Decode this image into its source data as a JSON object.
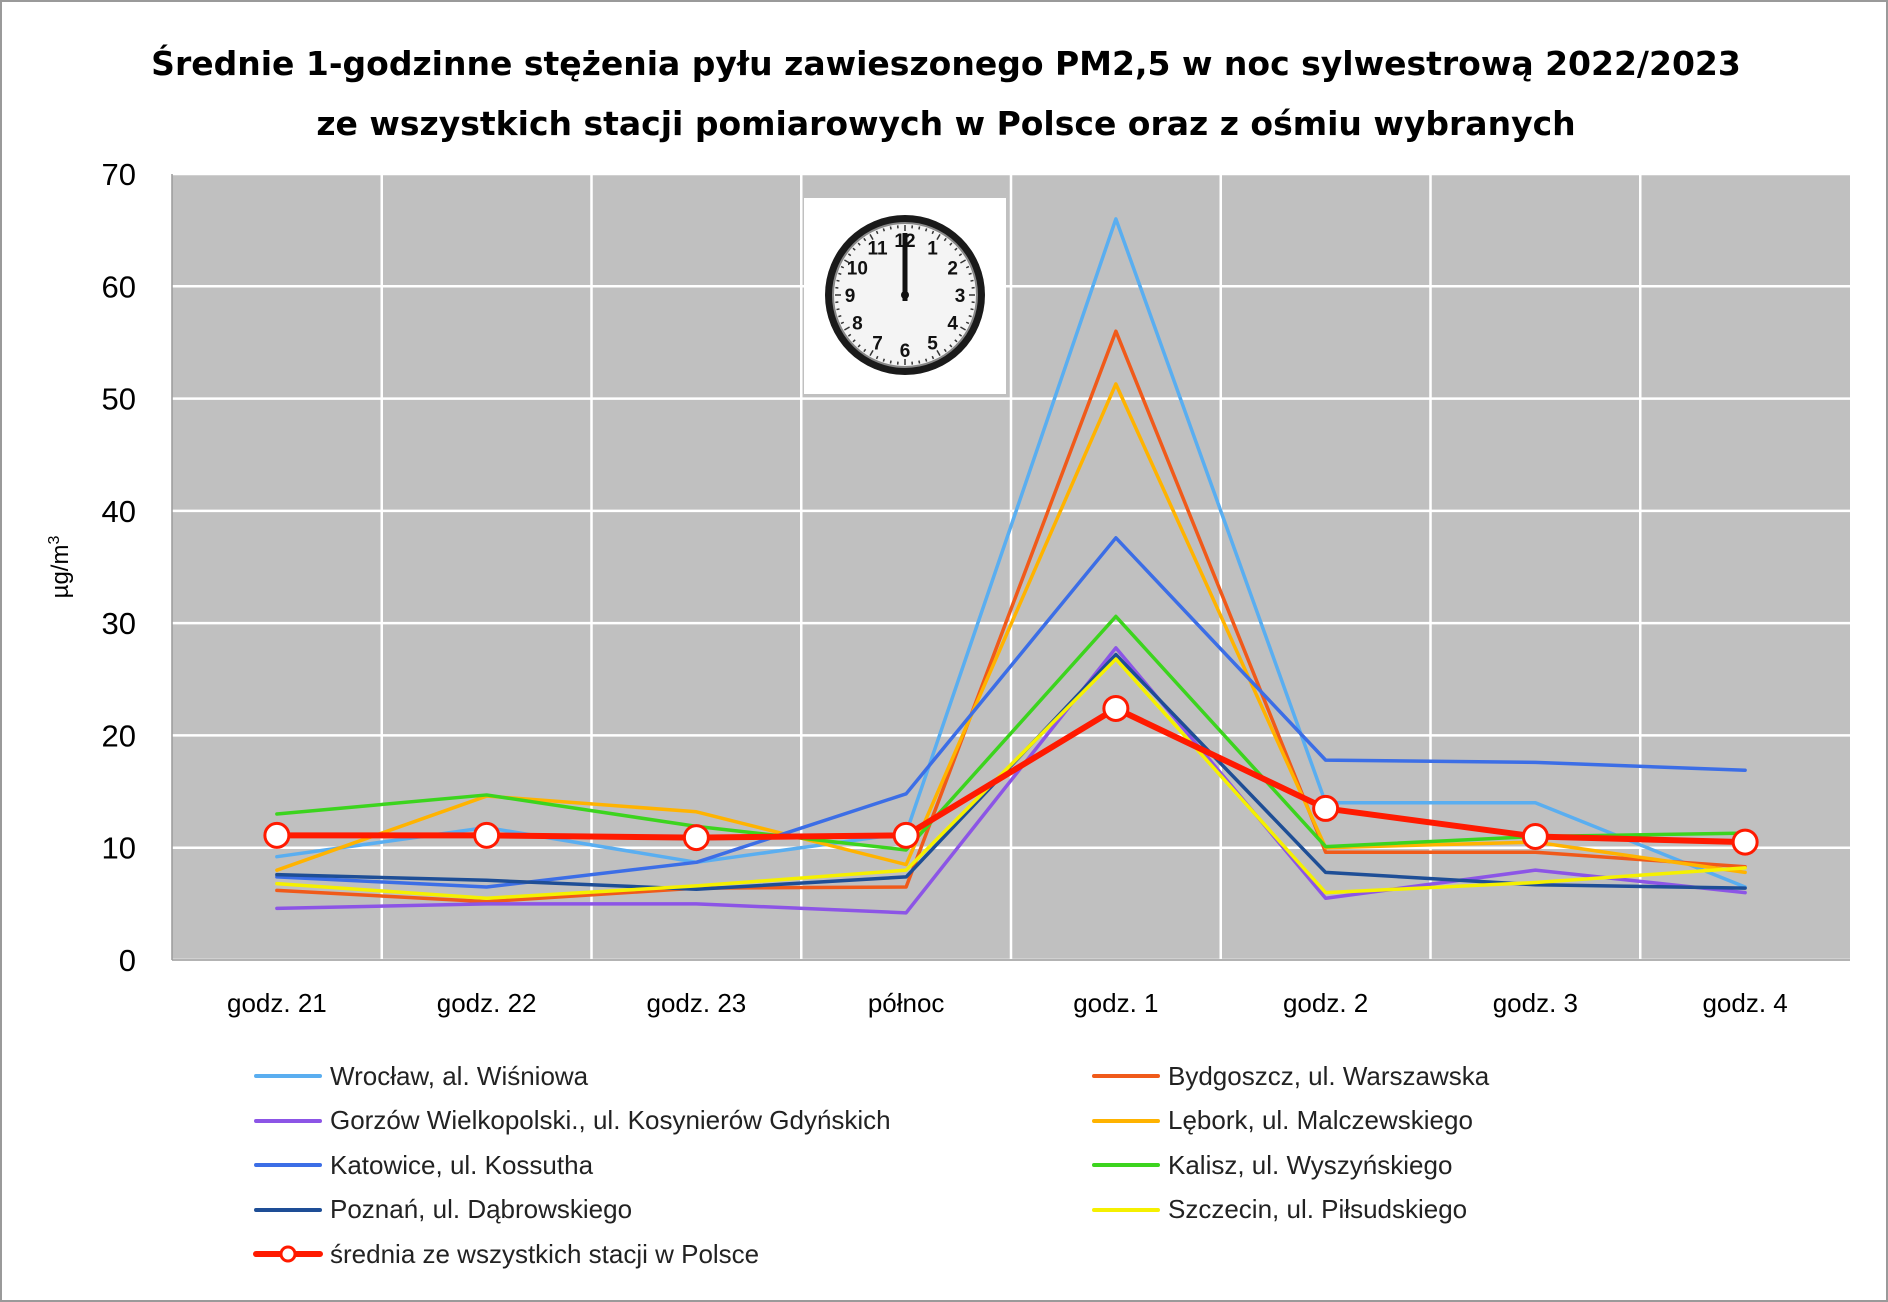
{
  "title": {
    "line1": "Średnie 1-godzinne stężenia pyłu zawieszonego PM2,5 w noc sylwestrową 2022/2023",
    "line2": "ze wszystkich stacji pomiarowych w Polsce oraz z ośmiu wybranych"
  },
  "colors": {
    "plot_background": "#c0c0c0",
    "gridline": "#ffffff"
  },
  "clock_icon": "wall-clock-showing-midnight-icon",
  "chart_data": {
    "type": "line",
    "title": "Średnie 1-godzinne stężenia pyłu zawieszonego PM2,5 w noc sylwestrową 2022/2023 ze wszystkich stacji pomiarowych w Polsce oraz z ośmiu wybranych",
    "ylabel": "µg/m",
    "ylabel_superscript": "3",
    "xlabel": "",
    "ylim": [
      0,
      70
    ],
    "yticks": [
      "0",
      "10",
      "20",
      "30",
      "40",
      "50",
      "60",
      "70"
    ],
    "grid": true,
    "legend_position": "bottom",
    "categories": [
      "godz. 21",
      "godz. 22",
      "godz. 23",
      "północ",
      "godz. 1",
      "godz. 2",
      "godz. 3",
      "godz. 4"
    ],
    "series": [
      {
        "name": "Wrocław, al. Wiśniowa",
        "color": "#5aaef0",
        "values": [
          9.2,
          11.8,
          8.7,
          11.3,
          66.0,
          14.0,
          14.0,
          6.5
        ]
      },
      {
        "name": "Bydgoszcz, ul. Warszawska",
        "color": "#f05a1a",
        "values": [
          6.2,
          5.2,
          6.4,
          6.5,
          56.0,
          9.6,
          9.6,
          8.3
        ]
      },
      {
        "name": "Gorzów Wielkopolski., ul. Kosynierów Gdyńskich",
        "color": "#8c55e6",
        "values": [
          4.6,
          5.0,
          5.0,
          4.2,
          27.8,
          5.5,
          8.0,
          6.0
        ]
      },
      {
        "name": "Lębork, ul. Malczewskiego",
        "color": "#ffb300",
        "values": [
          8.0,
          14.6,
          13.2,
          8.5,
          51.3,
          10.0,
          10.5,
          7.8
        ]
      },
      {
        "name": "Katowice, ul. Kossutha",
        "color": "#3c6ee6",
        "values": [
          7.4,
          6.5,
          8.7,
          14.8,
          37.6,
          17.8,
          17.6,
          16.9
        ]
      },
      {
        "name": "Kalisz, ul. Wyszyńskiego",
        "color": "#3cd41e",
        "values": [
          13.0,
          14.7,
          11.9,
          9.8,
          30.6,
          10.1,
          11.0,
          11.3
        ]
      },
      {
        "name": "Poznań, ul. Dąbrowskiego",
        "color": "#1e4e96",
        "values": [
          7.6,
          7.1,
          6.3,
          7.4,
          27.2,
          7.8,
          6.7,
          6.4
        ]
      },
      {
        "name": "Szczecin, ul. Piłsudskiego",
        "color": "#f5f000",
        "values": [
          6.8,
          5.5,
          6.6,
          8.0,
          26.8,
          6.0,
          6.9,
          8.2
        ]
      },
      {
        "name": "średnia ze wszystkich stacji w Polsce",
        "color": "#ff1a00",
        "values": [
          11.1,
          11.1,
          10.9,
          11.1,
          22.4,
          13.5,
          11.0,
          10.5
        ],
        "markers": true
      }
    ]
  }
}
